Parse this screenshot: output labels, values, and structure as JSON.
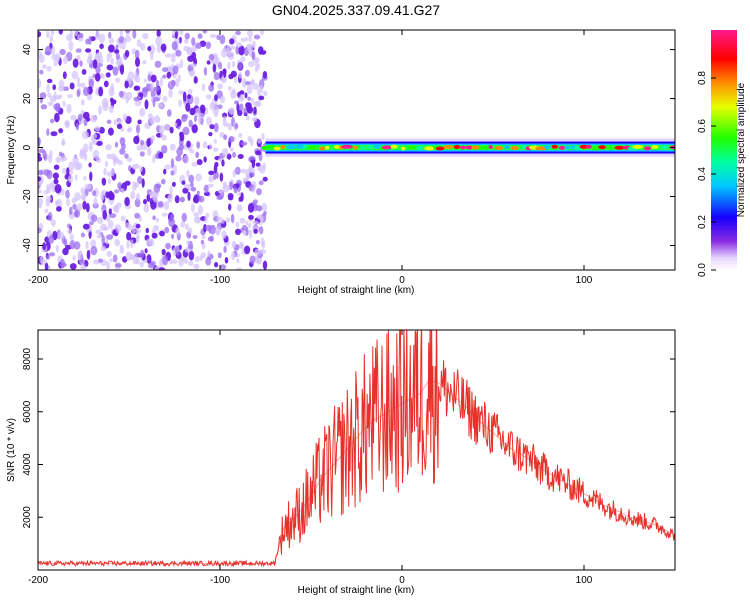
{
  "title": "GN04.2025.337.09.41.G27",
  "chart_data": [
    {
      "type": "heatmap",
      "xlabel": "Height of straight line (km)",
      "ylabel": "Frequency (Hz)",
      "xlim": [
        -200,
        150
      ],
      "ylim": [
        -50,
        48
      ],
      "xticks": [
        -200,
        -100,
        0,
        100
      ],
      "yticks": [
        -40,
        -20,
        0,
        20,
        40
      ],
      "colorbar": {
        "label": "Normalized spectral amplitude",
        "ticks": [
          "0.0",
          "0.2",
          "0.4",
          "0.6",
          "0.8"
        ],
        "range": [
          0,
          1
        ]
      },
      "regions": [
        {
          "x": [
            -200,
            -75
          ],
          "description": "scattered low amplitude noise",
          "amplitude": [
            0.0,
            0.15
          ]
        },
        {
          "x": [
            -75,
            150
          ],
          "frequency": 0,
          "amplitude": [
            0.3,
            1.0
          ]
        }
      ]
    },
    {
      "type": "line",
      "xlabel": "Height of straight line (km)",
      "ylabel": "SNR (10 * v/v)",
      "xlim": [
        -200,
        150
      ],
      "ylim": [
        0,
        9100
      ],
      "xticks": [
        -200,
        -100,
        0,
        100
      ],
      "yticks": [
        2000,
        4000,
        6000,
        8000
      ],
      "series": [
        {
          "color": "#e8302a",
          "x": [
            -200,
            -150,
            -100,
            -75,
            -70,
            -65,
            -60,
            -55,
            -50,
            -45,
            -40,
            -35,
            -30,
            -25,
            -20,
            -15,
            -10,
            -5,
            0,
            5,
            10,
            15,
            20,
            25,
            30,
            35,
            40,
            45,
            50,
            55,
            60,
            65,
            70,
            75,
            80,
            85,
            90,
            95,
            100,
            105,
            110,
            115,
            120,
            125,
            130,
            135,
            140,
            145,
            150
          ],
          "values": [
            250,
            250,
            250,
            250,
            250,
            1600,
            1900,
            2300,
            2800,
            3400,
            3800,
            4200,
            4600,
            5000,
            5400,
            5700,
            5900,
            6100,
            6300,
            6500,
            6700,
            7200,
            7100,
            6800,
            6500,
            6200,
            5800,
            5500,
            5200,
            4900,
            4600,
            4400,
            4200,
            3900,
            3700,
            3500,
            3300,
            3100,
            2900,
            2700,
            2500,
            2300,
            2200,
            2000,
            1900,
            1800,
            1700,
            1500,
            1300
          ]
        }
      ]
    }
  ]
}
